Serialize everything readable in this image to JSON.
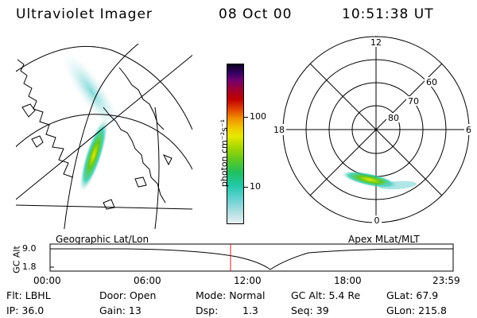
{
  "header": {
    "instrument": "Ultraviolet Imager",
    "date": "08 Oct 00",
    "time": "10:51:38 UT"
  },
  "geo_panel": {
    "label": "Geographic Lat/Lon"
  },
  "polar_panel": {
    "label": "Apex MLat/MLT",
    "mlt_labels": {
      "top": "12",
      "left": "18",
      "right": "6",
      "bottom": "0"
    },
    "lat_labels": [
      "60",
      "70",
      "80"
    ]
  },
  "colorbar": {
    "unit_label": "photon cm⁻²s⁻¹",
    "ticks": [
      "100",
      "10"
    ],
    "scale": "log",
    "colors": [
      "#e8f0f0",
      "#a8dce0",
      "#60d0d0",
      "#20c8a8",
      "#20c060",
      "#60c820",
      "#a8d800",
      "#e8e800",
      "#f0c800",
      "#f09000",
      "#e04000",
      "#c00000",
      "#a00030",
      "#700070",
      "#300060",
      "#100020"
    ]
  },
  "timeline": {
    "axis_label": "GC Alt",
    "y_ticks": [
      "9.0",
      "1.8"
    ],
    "x_ticks": [
      "00:00",
      "06:00",
      "12:00",
      "18:00",
      "23:59"
    ],
    "marker_color": "#cc2222"
  },
  "status": {
    "row1": {
      "flt": "Flt: LBHL",
      "door": "Door: Open",
      "mode": "Mode: Normal",
      "gc_alt": "GC Alt: 5.4 Re",
      "glat": "GLat:  67.9"
    },
    "row2": {
      "ip": "IP: 36.0",
      "gain": "Gain: 13",
      "dsp_label": "Dsp:",
      "dsp_value": "1.3",
      "seq": "Seq: 39",
      "glon": "GLon: 215.8"
    }
  }
}
